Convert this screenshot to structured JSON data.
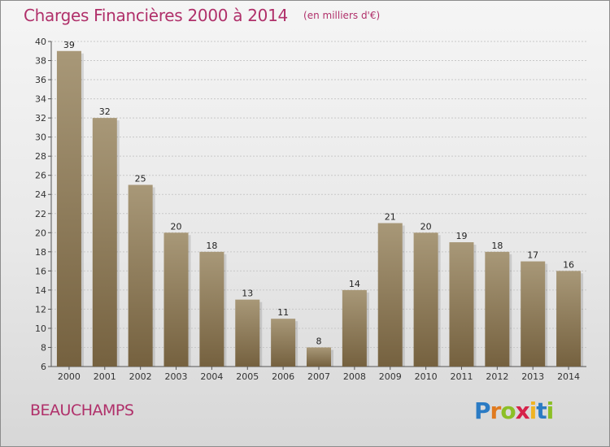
{
  "title": "Charges Financières 2000 à 2014",
  "subtitle": "(en milliers d'€)",
  "commune": "BEAUCHAMPS",
  "logo": {
    "letters": [
      "P",
      "r",
      "o",
      "x",
      "i",
      "t",
      "i"
    ],
    "colors": [
      "#2b7bc4",
      "#e07a1f",
      "#8cbf26",
      "#d6224a",
      "#f0b323",
      "#2b7bc4",
      "#8cbf26"
    ]
  },
  "colors": {
    "bar_top": "#a89878",
    "bar_bottom": "#75613f",
    "accent": "#b0306a"
  },
  "chart_data": {
    "type": "bar",
    "title": "Charges Financières 2000 à 2014",
    "subtitle": "(en milliers d'€)",
    "categories": [
      "2000",
      "2001",
      "2002",
      "2003",
      "2004",
      "2005",
      "2006",
      "2007",
      "2008",
      "2009",
      "2010",
      "2011",
      "2012",
      "2013",
      "2014"
    ],
    "values": [
      39,
      32,
      25,
      20,
      18,
      13,
      11,
      8,
      14,
      21,
      20,
      19,
      18,
      17,
      16
    ],
    "ylim": [
      6,
      40
    ],
    "yticks": [
      6,
      8,
      10,
      12,
      14,
      16,
      18,
      20,
      22,
      24,
      26,
      28,
      30,
      32,
      34,
      36,
      38,
      40
    ],
    "grid": true,
    "xlabel": "",
    "ylabel": ""
  }
}
